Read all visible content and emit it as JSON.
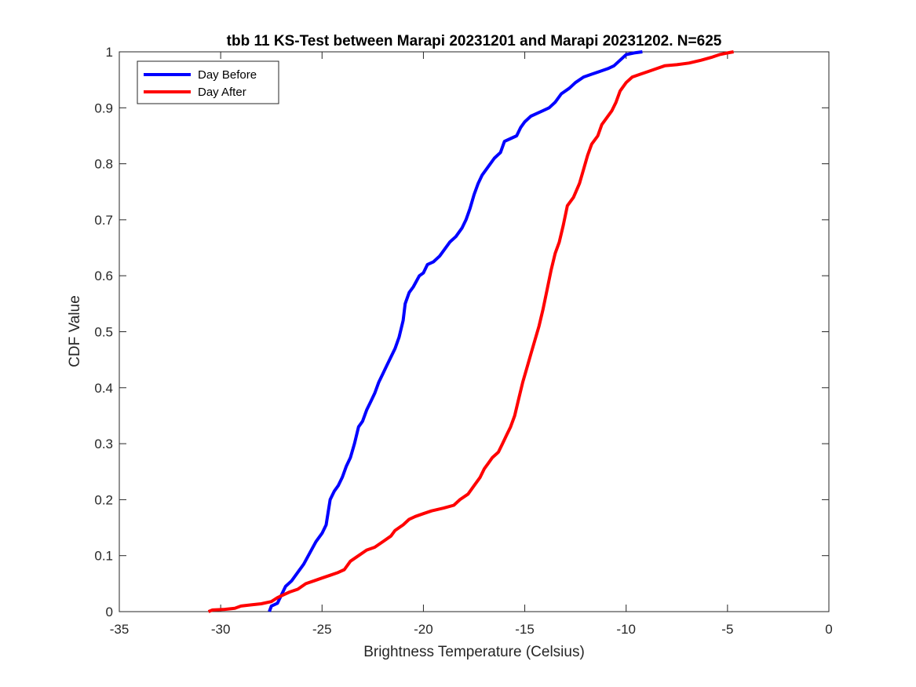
{
  "chart_data": {
    "type": "line",
    "title": "tbb 11 KS-Test between Marapi 20231201 and Marapi 20231202. N=625",
    "xlabel": "Brightness Temperature (Celsius)",
    "ylabel": "CDF Value",
    "xlim": [
      -35,
      0
    ],
    "ylim": [
      0,
      1
    ],
    "xticks": [
      "-35",
      "-30",
      "-25",
      "-20",
      "-15",
      "-10",
      "-5",
      "0"
    ],
    "xtick_values": [
      -35,
      -30,
      -25,
      -20,
      -15,
      -10,
      -5,
      0
    ],
    "yticks": [
      "0",
      "0.1",
      "0.2",
      "0.3",
      "0.4",
      "0.5",
      "0.6",
      "0.7",
      "0.8",
      "0.9",
      "1"
    ],
    "ytick_values": [
      0,
      0.1,
      0.2,
      0.3,
      0.4,
      0.5,
      0.6,
      0.7,
      0.8,
      0.9,
      1
    ],
    "grid": false,
    "legend_position": "top-left",
    "series": [
      {
        "name": "Day Before",
        "color": "#0000ff",
        "points": [
          [
            -27.6,
            0.0
          ],
          [
            -27.5,
            0.01
          ],
          [
            -27.2,
            0.015
          ],
          [
            -27.0,
            0.03
          ],
          [
            -26.8,
            0.045
          ],
          [
            -26.5,
            0.055
          ],
          [
            -26.2,
            0.07
          ],
          [
            -25.9,
            0.085
          ],
          [
            -25.6,
            0.105
          ],
          [
            -25.3,
            0.125
          ],
          [
            -25.0,
            0.14
          ],
          [
            -24.8,
            0.155
          ],
          [
            -24.6,
            0.2
          ],
          [
            -24.4,
            0.215
          ],
          [
            -24.2,
            0.225
          ],
          [
            -24.0,
            0.24
          ],
          [
            -23.8,
            0.26
          ],
          [
            -23.6,
            0.275
          ],
          [
            -23.4,
            0.3
          ],
          [
            -23.2,
            0.33
          ],
          [
            -23.0,
            0.34
          ],
          [
            -22.8,
            0.36
          ],
          [
            -22.6,
            0.375
          ],
          [
            -22.4,
            0.39
          ],
          [
            -22.2,
            0.41
          ],
          [
            -22.0,
            0.425
          ],
          [
            -21.8,
            0.44
          ],
          [
            -21.6,
            0.455
          ],
          [
            -21.4,
            0.47
          ],
          [
            -21.2,
            0.49
          ],
          [
            -21.0,
            0.52
          ],
          [
            -20.9,
            0.55
          ],
          [
            -20.7,
            0.57
          ],
          [
            -20.5,
            0.58
          ],
          [
            -20.2,
            0.6
          ],
          [
            -20.0,
            0.605
          ],
          [
            -19.8,
            0.62
          ],
          [
            -19.5,
            0.625
          ],
          [
            -19.2,
            0.635
          ],
          [
            -19.0,
            0.645
          ],
          [
            -18.7,
            0.66
          ],
          [
            -18.4,
            0.67
          ],
          [
            -18.1,
            0.685
          ],
          [
            -17.9,
            0.7
          ],
          [
            -17.7,
            0.72
          ],
          [
            -17.5,
            0.745
          ],
          [
            -17.3,
            0.765
          ],
          [
            -17.1,
            0.78
          ],
          [
            -16.8,
            0.795
          ],
          [
            -16.5,
            0.81
          ],
          [
            -16.2,
            0.82
          ],
          [
            -16.0,
            0.84
          ],
          [
            -15.7,
            0.845
          ],
          [
            -15.4,
            0.85
          ],
          [
            -15.2,
            0.865
          ],
          [
            -15.0,
            0.875
          ],
          [
            -14.7,
            0.885
          ],
          [
            -14.4,
            0.89
          ],
          [
            -14.1,
            0.895
          ],
          [
            -13.8,
            0.9
          ],
          [
            -13.5,
            0.91
          ],
          [
            -13.2,
            0.925
          ],
          [
            -12.8,
            0.935
          ],
          [
            -12.5,
            0.945
          ],
          [
            -12.1,
            0.955
          ],
          [
            -11.7,
            0.96
          ],
          [
            -11.3,
            0.965
          ],
          [
            -10.9,
            0.97
          ],
          [
            -10.6,
            0.975
          ],
          [
            -10.3,
            0.985
          ],
          [
            -10.0,
            0.995
          ],
          [
            -9.6,
            0.998
          ],
          [
            -9.2,
            1.0
          ]
        ]
      },
      {
        "name": "Day After",
        "color": "#ff0000",
        "points": [
          [
            -30.6,
            0.0
          ],
          [
            -30.4,
            0.003
          ],
          [
            -29.8,
            0.004
          ],
          [
            -29.3,
            0.006
          ],
          [
            -29.0,
            0.01
          ],
          [
            -28.5,
            0.012
          ],
          [
            -28.0,
            0.014
          ],
          [
            -27.5,
            0.018
          ],
          [
            -27.2,
            0.025
          ],
          [
            -26.9,
            0.03
          ],
          [
            -26.6,
            0.035
          ],
          [
            -26.2,
            0.04
          ],
          [
            -25.8,
            0.05
          ],
          [
            -25.4,
            0.055
          ],
          [
            -25.0,
            0.06
          ],
          [
            -24.6,
            0.065
          ],
          [
            -24.2,
            0.07
          ],
          [
            -23.9,
            0.075
          ],
          [
            -23.6,
            0.09
          ],
          [
            -23.2,
            0.1
          ],
          [
            -22.8,
            0.11
          ],
          [
            -22.4,
            0.115
          ],
          [
            -22.0,
            0.125
          ],
          [
            -21.6,
            0.135
          ],
          [
            -21.4,
            0.145
          ],
          [
            -21.0,
            0.155
          ],
          [
            -20.7,
            0.165
          ],
          [
            -20.4,
            0.17
          ],
          [
            -20.0,
            0.175
          ],
          [
            -19.6,
            0.18
          ],
          [
            -19.0,
            0.185
          ],
          [
            -18.5,
            0.19
          ],
          [
            -18.2,
            0.2
          ],
          [
            -17.8,
            0.21
          ],
          [
            -17.5,
            0.225
          ],
          [
            -17.2,
            0.24
          ],
          [
            -17.0,
            0.255
          ],
          [
            -16.8,
            0.265
          ],
          [
            -16.6,
            0.275
          ],
          [
            -16.3,
            0.285
          ],
          [
            -16.1,
            0.3
          ],
          [
            -15.9,
            0.315
          ],
          [
            -15.7,
            0.33
          ],
          [
            -15.5,
            0.35
          ],
          [
            -15.3,
            0.38
          ],
          [
            -15.1,
            0.41
          ],
          [
            -14.9,
            0.435
          ],
          [
            -14.7,
            0.46
          ],
          [
            -14.5,
            0.485
          ],
          [
            -14.3,
            0.51
          ],
          [
            -14.1,
            0.54
          ],
          [
            -13.9,
            0.575
          ],
          [
            -13.7,
            0.61
          ],
          [
            -13.5,
            0.64
          ],
          [
            -13.3,
            0.66
          ],
          [
            -13.1,
            0.69
          ],
          [
            -12.9,
            0.725
          ],
          [
            -12.6,
            0.74
          ],
          [
            -12.3,
            0.765
          ],
          [
            -12.1,
            0.79
          ],
          [
            -11.9,
            0.815
          ],
          [
            -11.7,
            0.835
          ],
          [
            -11.4,
            0.85
          ],
          [
            -11.2,
            0.87
          ],
          [
            -11.0,
            0.88
          ],
          [
            -10.7,
            0.895
          ],
          [
            -10.5,
            0.91
          ],
          [
            -10.3,
            0.93
          ],
          [
            -10.0,
            0.945
          ],
          [
            -9.7,
            0.955
          ],
          [
            -9.3,
            0.96
          ],
          [
            -8.9,
            0.965
          ],
          [
            -8.5,
            0.97
          ],
          [
            -8.1,
            0.975
          ],
          [
            -7.5,
            0.977
          ],
          [
            -6.9,
            0.98
          ],
          [
            -6.3,
            0.985
          ],
          [
            -5.8,
            0.99
          ],
          [
            -5.4,
            0.995
          ],
          [
            -5.0,
            0.998
          ],
          [
            -4.7,
            1.0
          ]
        ]
      }
    ]
  }
}
